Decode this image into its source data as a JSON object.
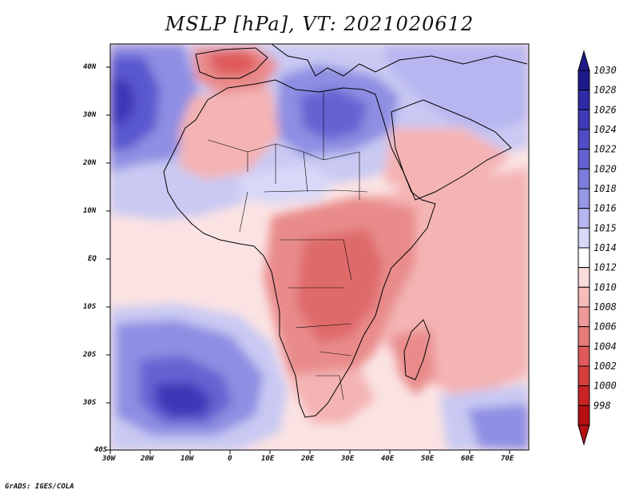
{
  "title": "MSLP [hPa], VT: 2021020612",
  "footer": "GrADS: IGES/COLA",
  "lat_labels": [
    "40N",
    "30N",
    "20N",
    "10N",
    "EQ",
    "10S",
    "20S",
    "30S",
    "40S"
  ],
  "lon_labels": [
    "30W",
    "20W",
    "10W",
    "0",
    "10E",
    "20E",
    "30E",
    "40E",
    "50E",
    "60E",
    "70E"
  ],
  "colorbar": {
    "levels": [
      "1030",
      "1028",
      "1026",
      "1024",
      "1022",
      "1020",
      "1018",
      "1016",
      "1015",
      "1014",
      "1012",
      "1010",
      "1008",
      "1006",
      "1004",
      "1002",
      "1000",
      "998"
    ],
    "colors": [
      "#1f1a8c",
      "#2f2aa6",
      "#3e3bb8",
      "#4f4dc6",
      "#6563d2",
      "#7d7cdc",
      "#9897e6",
      "#b7b6f0",
      "#d8d8f8",
      "#ffffff",
      "#fbdcdc",
      "#f6bcbc",
      "#ef9a9a",
      "#e77a7a",
      "#df5a5a",
      "#d63c3c",
      "#c82424",
      "#b51010"
    ]
  },
  "map_colors": {
    "ocean_light": "#fbe3e3",
    "pink": "#f4b4b4",
    "red_mid": "#e98b8b",
    "red_deep": "#df6b6b",
    "blue_light": "#c9c9f3",
    "blue_mid": "#8e8ee3",
    "blue_deep": "#5a58cf",
    "blue_core": "#3c39b8"
  }
}
